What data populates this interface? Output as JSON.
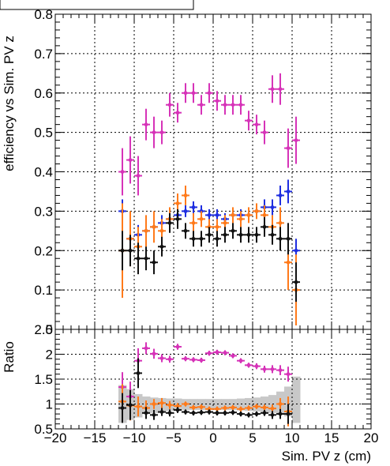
{
  "chart_data": [
    {
      "type": "scatter",
      "title": "",
      "xlabel": "",
      "ylabel": "efficiency vs Sim. PV z",
      "xlim": [
        -20,
        20
      ],
      "ylim": [
        0,
        0.8
      ],
      "xticks": [
        -20,
        -15,
        -10,
        -5,
        0,
        5,
        10,
        15,
        20
      ],
      "yticks": [
        0,
        0.1,
        0.2,
        0.3,
        0.4,
        0.5,
        0.6,
        0.7,
        0.8
      ],
      "ytick_labels": [
        "0",
        "0.1",
        "0.2",
        "0.3",
        "0.4",
        "0.5",
        "0.6",
        "0.7",
        "0.8"
      ],
      "grid": true,
      "series": [
        {
          "color": "#d633b8",
          "x": [
            -11.5,
            -10.5,
            -9.5,
            -8.5,
            -7.5,
            -6.5,
            -5.5,
            -4.5,
            -3.5,
            -2.5,
            -1.5,
            -0.5,
            0.5,
            1.5,
            2.5,
            3.5,
            4.5,
            5.5,
            6.5,
            7.5,
            8.5,
            9.5,
            10.5
          ],
          "y": [
            0.4,
            0.43,
            0.39,
            0.52,
            0.5,
            0.5,
            0.57,
            0.55,
            0.6,
            0.6,
            0.57,
            0.6,
            0.58,
            0.57,
            0.57,
            0.57,
            0.53,
            0.52,
            0.5,
            0.61,
            0.61,
            0.46,
            0.48
          ],
          "err": [
            0.06,
            0.06,
            0.05,
            0.04,
            0.04,
            0.03,
            0.03,
            0.025,
            0.025,
            0.025,
            0.025,
            0.025,
            0.025,
            0.025,
            0.025,
            0.025,
            0.025,
            0.025,
            0.03,
            0.035,
            0.04,
            0.05,
            0.06
          ]
        },
        {
          "color": "#1f2ee0",
          "x": [
            -11.5,
            -10.5,
            -9.5,
            -8.5,
            -7.5,
            -6.5,
            -5.5,
            -4.5,
            -3.5,
            -2.5,
            -1.5,
            -0.5,
            0.5,
            1.5,
            2.5,
            3.5,
            4.5,
            5.5,
            6.5,
            7.5,
            8.5,
            9.5,
            10.5
          ],
          "y": [
            0.3,
            0.23,
            0.24,
            0.25,
            0.26,
            0.27,
            0.28,
            0.29,
            0.3,
            0.31,
            0.3,
            0.29,
            0.29,
            0.28,
            0.29,
            0.29,
            0.29,
            0.3,
            0.31,
            0.31,
            0.34,
            0.35,
            0.2
          ],
          "err": [
            0.03,
            0.03,
            0.025,
            0.02,
            0.02,
            0.02,
            0.02,
            0.015,
            0.015,
            0.015,
            0.015,
            0.015,
            0.015,
            0.015,
            0.015,
            0.015,
            0.015,
            0.015,
            0.02,
            0.02,
            0.025,
            0.03,
            0.03
          ]
        },
        {
          "color": "#ff7a1a",
          "x": [
            -11.5,
            -10.5,
            -9.5,
            -8.5,
            -7.5,
            -6.5,
            -5.5,
            -4.5,
            -3.5,
            -2.5,
            -1.5,
            -0.5,
            0.5,
            1.5,
            2.5,
            3.5,
            4.5,
            5.5,
            6.5,
            7.5,
            8.5,
            9.5,
            10.5
          ],
          "y": [
            0.2,
            0.23,
            0.21,
            0.25,
            0.26,
            0.25,
            0.28,
            0.32,
            0.34,
            0.27,
            0.28,
            0.26,
            0.26,
            0.27,
            0.29,
            0.28,
            0.29,
            0.3,
            0.29,
            0.26,
            0.27,
            0.17,
            0.1
          ],
          "err": [
            0.12,
            0.07,
            0.05,
            0.04,
            0.04,
            0.03,
            0.03,
            0.025,
            0.025,
            0.025,
            0.02,
            0.02,
            0.02,
            0.02,
            0.02,
            0.02,
            0.02,
            0.02,
            0.025,
            0.03,
            0.04,
            0.07,
            0.09
          ]
        },
        {
          "color": "#111111",
          "x": [
            -11.5,
            -10.5,
            -9.5,
            -8.5,
            -7.5,
            -6.5,
            -5.5,
            -4.5,
            -3.5,
            -2.5,
            -1.5,
            -0.5,
            0.5,
            1.5,
            2.5,
            3.5,
            4.5,
            5.5,
            6.5,
            7.5,
            8.5,
            9.5,
            10.5
          ],
          "y": [
            0.2,
            0.2,
            0.18,
            0.18,
            0.17,
            0.21,
            0.27,
            0.28,
            0.25,
            0.23,
            0.23,
            0.24,
            0.23,
            0.24,
            0.25,
            0.24,
            0.24,
            0.24,
            0.26,
            0.24,
            0.23,
            0.23,
            0.12
          ],
          "err": [
            0.05,
            0.04,
            0.04,
            0.03,
            0.03,
            0.025,
            0.025,
            0.025,
            0.02,
            0.02,
            0.02,
            0.02,
            0.02,
            0.02,
            0.02,
            0.02,
            0.02,
            0.02,
            0.025,
            0.025,
            0.03,
            0.04,
            0.05
          ]
        }
      ]
    },
    {
      "type": "scatter",
      "title": "",
      "xlabel": "Sim. PV z (cm)",
      "ylabel": "Ratio",
      "xlim": [
        -20,
        20
      ],
      "ylim": [
        0.5,
        2.5
      ],
      "xticks": [
        -20,
        -15,
        -10,
        -5,
        0,
        5,
        10,
        15,
        20
      ],
      "xtick_labels": [
        "−20",
        "−15",
        "−10",
        "−5",
        "0",
        "5",
        "10",
        "15",
        "20"
      ],
      "yticks": [
        0.5,
        1,
        1.5,
        2,
        2.5
      ],
      "ytick_labels": [
        "0.5",
        "1",
        "1.5",
        "2",
        "2.5"
      ],
      "grid": true,
      "band": {
        "color": "#c8c8c8",
        "x": [
          -11.5,
          -10.5,
          -9.5,
          -8.5,
          -7.5,
          -6.5,
          -5.5,
          -4.5,
          -3.5,
          -2.5,
          -1.5,
          -0.5,
          0.5,
          1.5,
          2.5,
          3.5,
          4.5,
          5.5,
          6.5,
          7.5,
          8.5,
          9.5,
          10.5
        ],
        "lo": [
          0.62,
          0.68,
          0.73,
          0.8,
          0.82,
          0.84,
          0.86,
          0.87,
          0.88,
          0.88,
          0.88,
          0.88,
          0.88,
          0.88,
          0.88,
          0.87,
          0.86,
          0.85,
          0.84,
          0.82,
          0.8,
          0.75,
          0.62
        ],
        "hi": [
          1.38,
          1.3,
          1.2,
          1.15,
          1.13,
          1.12,
          1.11,
          1.11,
          1.1,
          1.1,
          1.1,
          1.1,
          1.1,
          1.1,
          1.1,
          1.11,
          1.12,
          1.13,
          1.15,
          1.18,
          1.25,
          1.35,
          1.55
        ]
      },
      "series": [
        {
          "color": "#d633b8",
          "x": [
            -11.5,
            -10.5,
            -9.5,
            -8.5,
            -7.5,
            -6.5,
            -5.5,
            -4.5,
            -3.5,
            -2.5,
            -1.5,
            -0.5,
            0.5,
            1.5,
            2.5,
            3.5,
            4.5,
            5.5,
            6.5,
            7.5,
            8.5,
            9.5
          ],
          "y": [
            1.34,
            1.15,
            1.87,
            2.12,
            2.01,
            1.92,
            1.9,
            2.15,
            1.91,
            1.89,
            1.88,
            2.02,
            2.04,
            2.03,
            1.97,
            1.87,
            1.78,
            1.76,
            1.7,
            1.7,
            1.68,
            1.6
          ],
          "err": [
            0.3,
            0.3,
            0.25,
            0.12,
            0.1,
            0.08,
            0.07,
            0.06,
            0.05,
            0.05,
            0.05,
            0.05,
            0.05,
            0.05,
            0.05,
            0.05,
            0.05,
            0.06,
            0.07,
            0.08,
            0.1,
            0.15
          ]
        },
        {
          "color": "#ff7a1a",
          "x": [
            -11.5,
            -10.5,
            -9.5,
            -8.5,
            -7.5,
            -6.5,
            -5.5,
            -4.5,
            -3.5,
            -2.5,
            -1.5,
            -0.5,
            0.5,
            1.5,
            2.5,
            3.5,
            4.5,
            5.5,
            6.5,
            7.5,
            8.5,
            9.5
          ],
          "y": [
            1.05,
            0.97,
            0.95,
            0.92,
            1.0,
            1.02,
            0.98,
            0.96,
            1.0,
            0.93,
            0.94,
            0.9,
            0.9,
            0.92,
            0.93,
            0.9,
            0.92,
            0.95,
            0.93,
            0.91,
            1.0,
            0.85
          ],
          "err": [
            0.35,
            0.3,
            0.2,
            0.15,
            0.1,
            0.1,
            0.08,
            0.06,
            0.05,
            0.05,
            0.05,
            0.05,
            0.05,
            0.05,
            0.05,
            0.05,
            0.05,
            0.05,
            0.06,
            0.08,
            0.12,
            0.3
          ]
        },
        {
          "color": "#111111",
          "x": [
            -11.5,
            -10.5,
            -9.5,
            -8.5,
            -7.5,
            -6.5,
            -5.5,
            -4.5,
            -3.5,
            -2.5,
            -1.5,
            -0.5,
            0.5,
            1.5,
            2.5,
            3.5,
            4.5,
            5.5,
            6.5,
            7.5,
            8.5,
            9.5
          ],
          "y": [
            0.92,
            0.98,
            1.62,
            0.82,
            0.78,
            0.84,
            0.82,
            0.88,
            0.84,
            0.82,
            0.83,
            0.84,
            0.82,
            0.82,
            0.83,
            0.8,
            0.78,
            0.8,
            0.82,
            0.78,
            0.8,
            0.8
          ],
          "err": [
            0.3,
            0.3,
            0.3,
            0.12,
            0.1,
            0.08,
            0.07,
            0.06,
            0.05,
            0.05,
            0.05,
            0.05,
            0.05,
            0.05,
            0.05,
            0.05,
            0.05,
            0.05,
            0.06,
            0.08,
            0.1,
            0.2
          ]
        }
      ]
    }
  ]
}
